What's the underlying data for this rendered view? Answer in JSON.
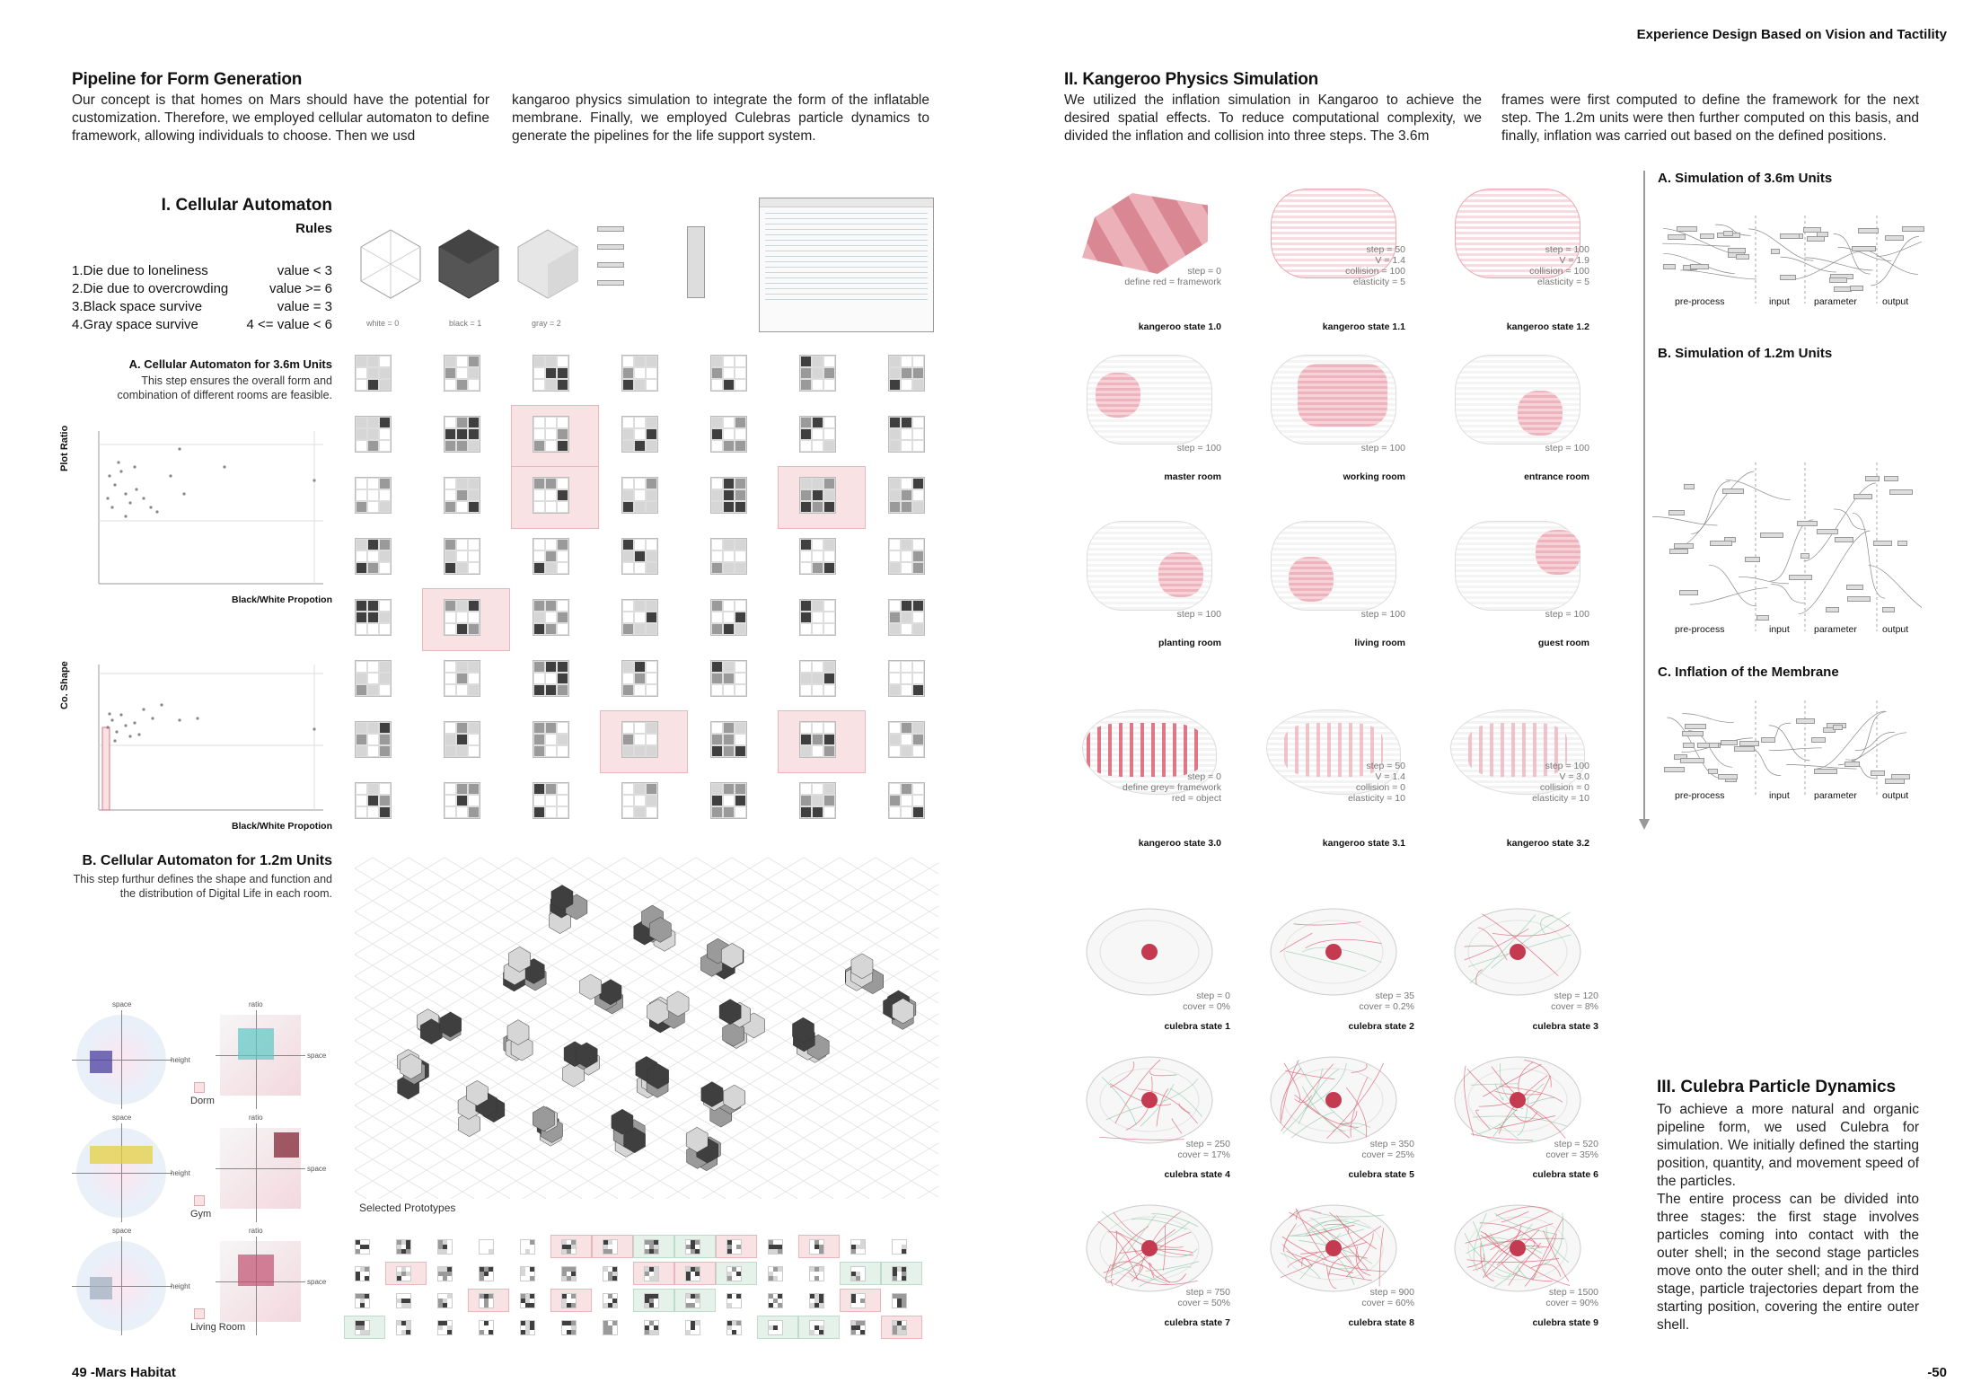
{
  "header": {
    "right_title": "Experience Design Based on Vision and Tactility"
  },
  "left": {
    "title": "Pipeline for Form Generation",
    "intro_col1": "Our concept is that homes on Mars should have the potential for customization. Therefore, we employed cellular automaton to define framework, allowing individuals to choose. Then we usd",
    "intro_col2": "kangaroo physics simulation to integrate the form of the inflatable membrane. Finally, we employed Culebras particle dynamics to generate the pipelines for the life support system.",
    "ca_title": "I. Cellular Automaton",
    "rules_label": "Rules",
    "rules": [
      {
        "text": "1.Die due to loneliness",
        "value": "value < 3"
      },
      {
        "text": "2.Die due to overcrowding",
        "value": "value >= 6"
      },
      {
        "text": "3.Black space survive",
        "value": "value = 3"
      },
      {
        "text": "4.Gray space survive",
        "value": "4 <= value < 6"
      }
    ],
    "states": [
      "white = 0",
      "black = 1",
      "gray = 2"
    ],
    "section_a_title": "A. Cellular Automaton for 3.6m Units",
    "section_a_desc": "This step ensures the overall form and combination of different rooms are feasible.",
    "plot1_ylabel": "Plot Ratio",
    "plot1_xlabel": "Black/White Propotion",
    "plot2_ylabel": "Co. Shape",
    "plot2_xlabel": "Black/White Propotion",
    "section_b_title": "B. Cellular Automaton for 1.2m Units",
    "section_b_desc": "This step furthur defines the shape and function and the distribution of Digital Life in each room.",
    "radar_labels": {
      "space": "space",
      "ratio": "ratio",
      "height": "height",
      "space_r": "space"
    },
    "room_types": [
      "Dorm",
      "Gym",
      "Living Room"
    ],
    "selected_label": "Selected Prototypes",
    "footer": "49 -Mars Habitat"
  },
  "right": {
    "kangaroo_title": "II. Kangeroo Physics Simulation",
    "kangaroo_col1": "We utilized the inflation simulation in Kangaroo to achieve the desired spatial effects. To reduce computational complexity, we divided the inflation and collision into three steps. The 3.6m",
    "kangaroo_col2": "frames were first computed to define the framework for the next step. The 1.2m units were then further computed on this basis, and finally, inflation was carried out based on the defined positions.",
    "kstates": [
      {
        "params": [
          "step = 0",
          "define red = framework"
        ],
        "name": "kangeroo state 1.0"
      },
      {
        "params": [
          "step = 50",
          "V = 1.4",
          "collision = 100",
          "elasticity = 5"
        ],
        "name": "kangeroo state 1.1"
      },
      {
        "params": [
          "step = 100",
          "V = 1.9",
          "collision = 100",
          "elasticity = 5"
        ],
        "name": "kangeroo state 1.2"
      },
      {
        "params": [
          "step = 100"
        ],
        "name": "master room"
      },
      {
        "params": [
          "step = 100"
        ],
        "name": "working room"
      },
      {
        "params": [
          "step = 100"
        ],
        "name": "entrance room"
      },
      {
        "params": [
          "step = 100"
        ],
        "name": "planting room"
      },
      {
        "params": [
          "step = 100"
        ],
        "name": "living room"
      },
      {
        "params": [
          "step = 100"
        ],
        "name": "guest room"
      },
      {
        "params": [
          "step = 0",
          "define grey= framework",
          "red = object"
        ],
        "name": "kangeroo state 3.0"
      },
      {
        "params": [
          "step = 50",
          "V = 1.4",
          "collision = 0",
          "elasticity = 10"
        ],
        "name": "kangeroo state 3.1"
      },
      {
        "params": [
          "step = 100",
          "V = 3.0",
          "collision = 0",
          "elasticity = 10"
        ],
        "name": "kangeroo state 3.2"
      }
    ],
    "sim_sections": [
      {
        "title": "A. Simulation of 3.6m Units"
      },
      {
        "title": "B. Simulation of 1.2m Units"
      },
      {
        "title": "C. Inflation of the Membrane"
      }
    ],
    "sim_labels": [
      "pre-process",
      "input",
      "parameter",
      "output"
    ],
    "culebra": [
      {
        "params": [
          "step = 0",
          "cover = 0%"
        ],
        "name": "culebra state 1"
      },
      {
        "params": [
          "step = 35",
          "cover = 0.2%"
        ],
        "name": "culebra state 2"
      },
      {
        "params": [
          "step = 120",
          "cover = 8%"
        ],
        "name": "culebra state 3"
      },
      {
        "params": [
          "step = 250",
          "cover = 17%"
        ],
        "name": "culebra state 4"
      },
      {
        "params": [
          "step = 350",
          "cover = 25%"
        ],
        "name": "culebra state 5"
      },
      {
        "params": [
          "step = 520",
          "cover = 35%"
        ],
        "name": "culebra state 6"
      },
      {
        "params": [
          "step = 750",
          "cover = 50%"
        ],
        "name": "culebra state 7"
      },
      {
        "params": [
          "step = 900",
          "cover = 60%"
        ],
        "name": "culebra state 8"
      },
      {
        "params": [
          "step = 1500",
          "cover = 90%"
        ],
        "name": "culebra state 9"
      }
    ],
    "culebra_title": "III. Culebra Particle Dynamics",
    "culebra_p1": "To achieve a more natural and organic pipeline form, we used Culebra for simulation. We initially defined the starting position, quantity, and movement speed of the particles.",
    "culebra_p2": "The entire process can be divided into three stages: the first stage involves particles coming into contact with the outer shell; in the second stage particles move onto the outer shell; and in the third stage, particle trajectories depart from the starting position, covering the entire outer shell.",
    "footer": "-50"
  },
  "colors": {
    "accent_red": "#d9566a",
    "highlight_pink": "#f8e2e4",
    "highlight_green": "#e4f2ea"
  }
}
